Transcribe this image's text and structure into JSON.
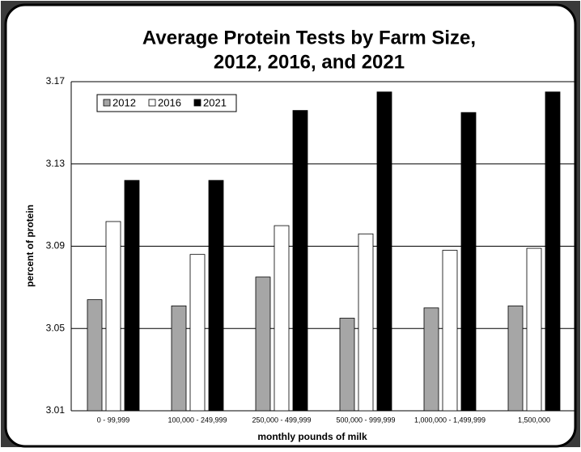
{
  "chart_data": {
    "type": "bar",
    "title": [
      "Average Protein Tests by Farm Size,",
      "2012, 2016, and 2021"
    ],
    "x_label": "monthly pounds of milk",
    "y_label": "percent of protein",
    "categories": [
      "0 - 99,999",
      "100,000 - 249,999",
      "250,000 - 499,999",
      "500,000 - 999,999",
      "1,000,000 - 1,499,999",
      "1,500,000"
    ],
    "series": [
      {
        "name": "2012",
        "color": "#a6a6a6",
        "values": [
          3.064,
          3.061,
          3.075,
          3.055,
          3.06,
          3.061
        ]
      },
      {
        "name": "2016",
        "color": "#ffffff",
        "values": [
          3.102,
          3.086,
          3.1,
          3.096,
          3.088,
          3.089
        ]
      },
      {
        "name": "2021",
        "color": "#000000",
        "values": [
          3.122,
          3.122,
          3.156,
          3.165,
          3.155,
          3.165
        ]
      }
    ],
    "ylim": [
      3.01,
      3.17
    ],
    "yticks": [
      3.01,
      3.05,
      3.09,
      3.13,
      3.17
    ],
    "grid": true,
    "legend": "top-left"
  }
}
